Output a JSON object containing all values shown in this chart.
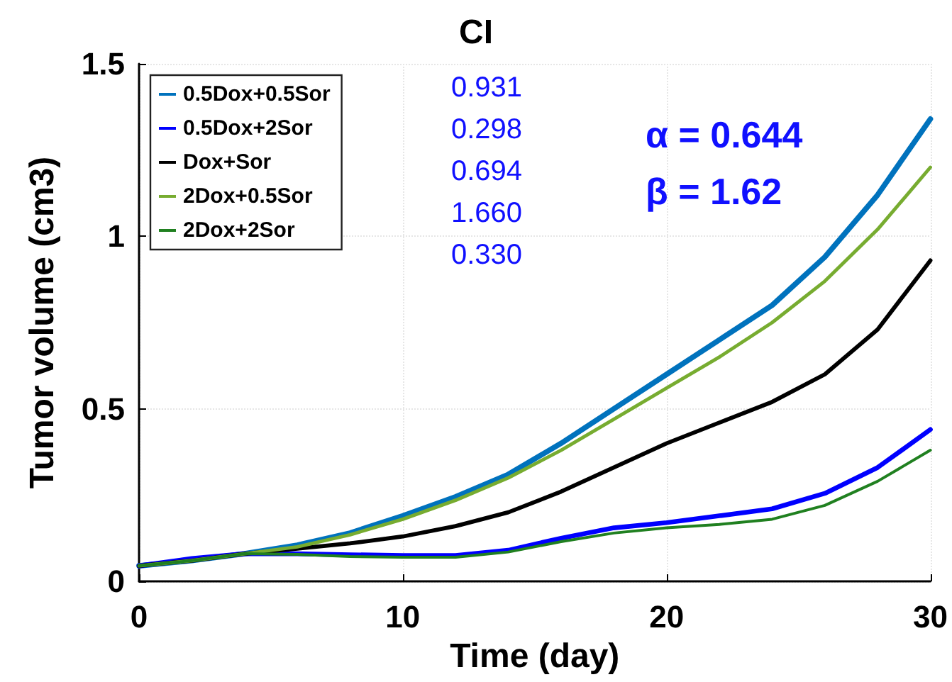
{
  "chart_data": {
    "type": "line",
    "title": "CI",
    "xlabel": "Time (day)",
    "ylabel": "Tumor volume (cm3)",
    "x": [
      0,
      2,
      4,
      6,
      8,
      10,
      12,
      14,
      16,
      18,
      20,
      22,
      24,
      26,
      28,
      30
    ],
    "series": [
      {
        "name": "0.5Dox+0.5Sor",
        "color": "#0072bd",
        "values": [
          0.045,
          0.06,
          0.08,
          0.105,
          0.14,
          0.19,
          0.245,
          0.31,
          0.4,
          0.5,
          0.6,
          0.7,
          0.8,
          0.94,
          1.12,
          1.34
        ]
      },
      {
        "name": "0.5Dox+2Sor",
        "color": "#0000ff",
        "values": [
          0.045,
          0.066,
          0.08,
          0.08,
          0.077,
          0.075,
          0.075,
          0.09,
          0.125,
          0.155,
          0.17,
          0.19,
          0.21,
          0.255,
          0.33,
          0.44
        ]
      },
      {
        "name": "Dox+Sor",
        "color": "#000000",
        "values": [
          0.045,
          0.06,
          0.08,
          0.095,
          0.11,
          0.13,
          0.16,
          0.2,
          0.26,
          0.33,
          0.4,
          0.46,
          0.52,
          0.6,
          0.73,
          0.93
        ]
      },
      {
        "name": "2Dox+0.5Sor",
        "color": "#77ac30",
        "values": [
          0.045,
          0.06,
          0.08,
          0.1,
          0.135,
          0.18,
          0.235,
          0.3,
          0.38,
          0.47,
          0.56,
          0.65,
          0.75,
          0.87,
          1.02,
          1.2
        ]
      },
      {
        "name": "2Dox+2Sor",
        "color": "#208020",
        "values": [
          0.045,
          0.06,
          0.08,
          0.078,
          0.072,
          0.07,
          0.07,
          0.085,
          0.115,
          0.14,
          0.155,
          0.165,
          0.18,
          0.22,
          0.29,
          0.38
        ]
      }
    ],
    "xlim": [
      0,
      30
    ],
    "xticks": [
      0,
      10,
      20,
      30
    ],
    "ylim": [
      0,
      1.5
    ],
    "yticks": [
      0,
      0.5,
      1,
      1.5
    ],
    "grid": true,
    "legend": "top left",
    "marker": "none",
    "line_style": "solid",
    "annotations": [
      "0.931",
      "0.298",
      "0.694",
      "1.660",
      "0.330",
      "α = 0.644",
      "β = 1.62"
    ]
  }
}
